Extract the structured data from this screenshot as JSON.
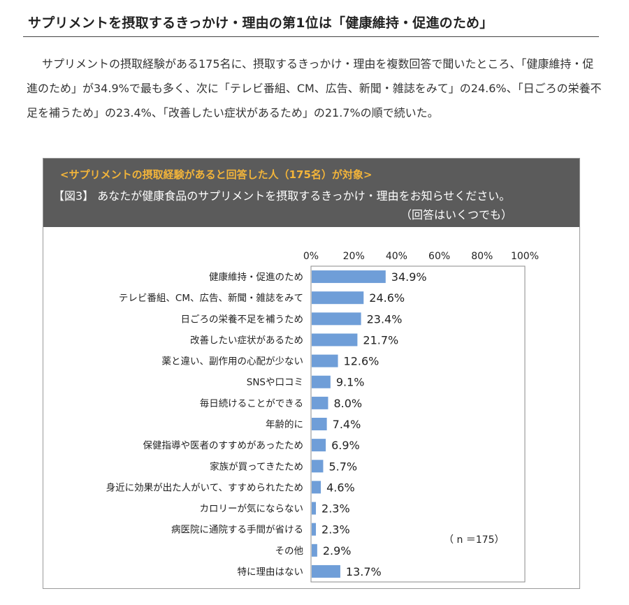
{
  "heading": "サプリメントを摂取するきっかけ・理由の第1位は「健康維持・促進のため」",
  "intro": "サプリメントの摂取経験がある175名に、摂取するきっかけ・理由を複数回答で聞いたところ、「健康維持・促進のため」が34.9%で最も多く、次に「テレビ番組、CM、広告、新聞・雑誌をみて」の24.6%、「日ごろの栄養不足を補うため」の23.4%、「改善したい症状があるため」の21.7%の順で続いた。",
  "figure": {
    "target": "<サプリメントの摂取経験があると回答した人（175名）が対象>",
    "question": "【図3】 あなたが健康食品のサプリメントを摂取するきっかけ・理由をお知らせください。",
    "note": "（回答はいくつでも）"
  },
  "chart_data": {
    "type": "bar",
    "orientation": "horizontal",
    "categories": [
      "健康維持・促進のため",
      "テレビ番組、CM、広告、新聞・雑誌をみて",
      "日ごろの栄養不足を補うため",
      "改善したい症状があるため",
      "薬と違い、副作用の心配が少ない",
      "SNSや口コミ",
      "毎日続けることができる",
      "年齢的に",
      "保健指導や医者のすすめがあったため",
      "家族が買ってきたため",
      "身近に効果が出た人がいて、すすめられたため",
      "カロリーが気にならない",
      "病医院に通院する手間が省ける",
      "その他",
      "特に理由はない"
    ],
    "values": [
      34.9,
      24.6,
      23.4,
      21.7,
      12.6,
      9.1,
      8.0,
      7.4,
      6.9,
      5.7,
      4.6,
      2.3,
      2.3,
      2.9,
      13.7
    ],
    "value_labels": [
      "34.9%",
      "24.6%",
      "23.4%",
      "21.7%",
      "12.6%",
      "9.1%",
      "8.0%",
      "7.4%",
      "6.9%",
      "5.7%",
      "4.6%",
      "2.3%",
      "2.3%",
      "2.9%",
      "13.7%"
    ],
    "xticks": [
      "0%",
      "20%",
      "40%",
      "60%",
      "80%",
      "100%"
    ],
    "xlim": [
      0,
      100
    ],
    "sample_label": "（ n ＝175）",
    "bar_color": "#6f9ed8",
    "axis_position": "top"
  }
}
